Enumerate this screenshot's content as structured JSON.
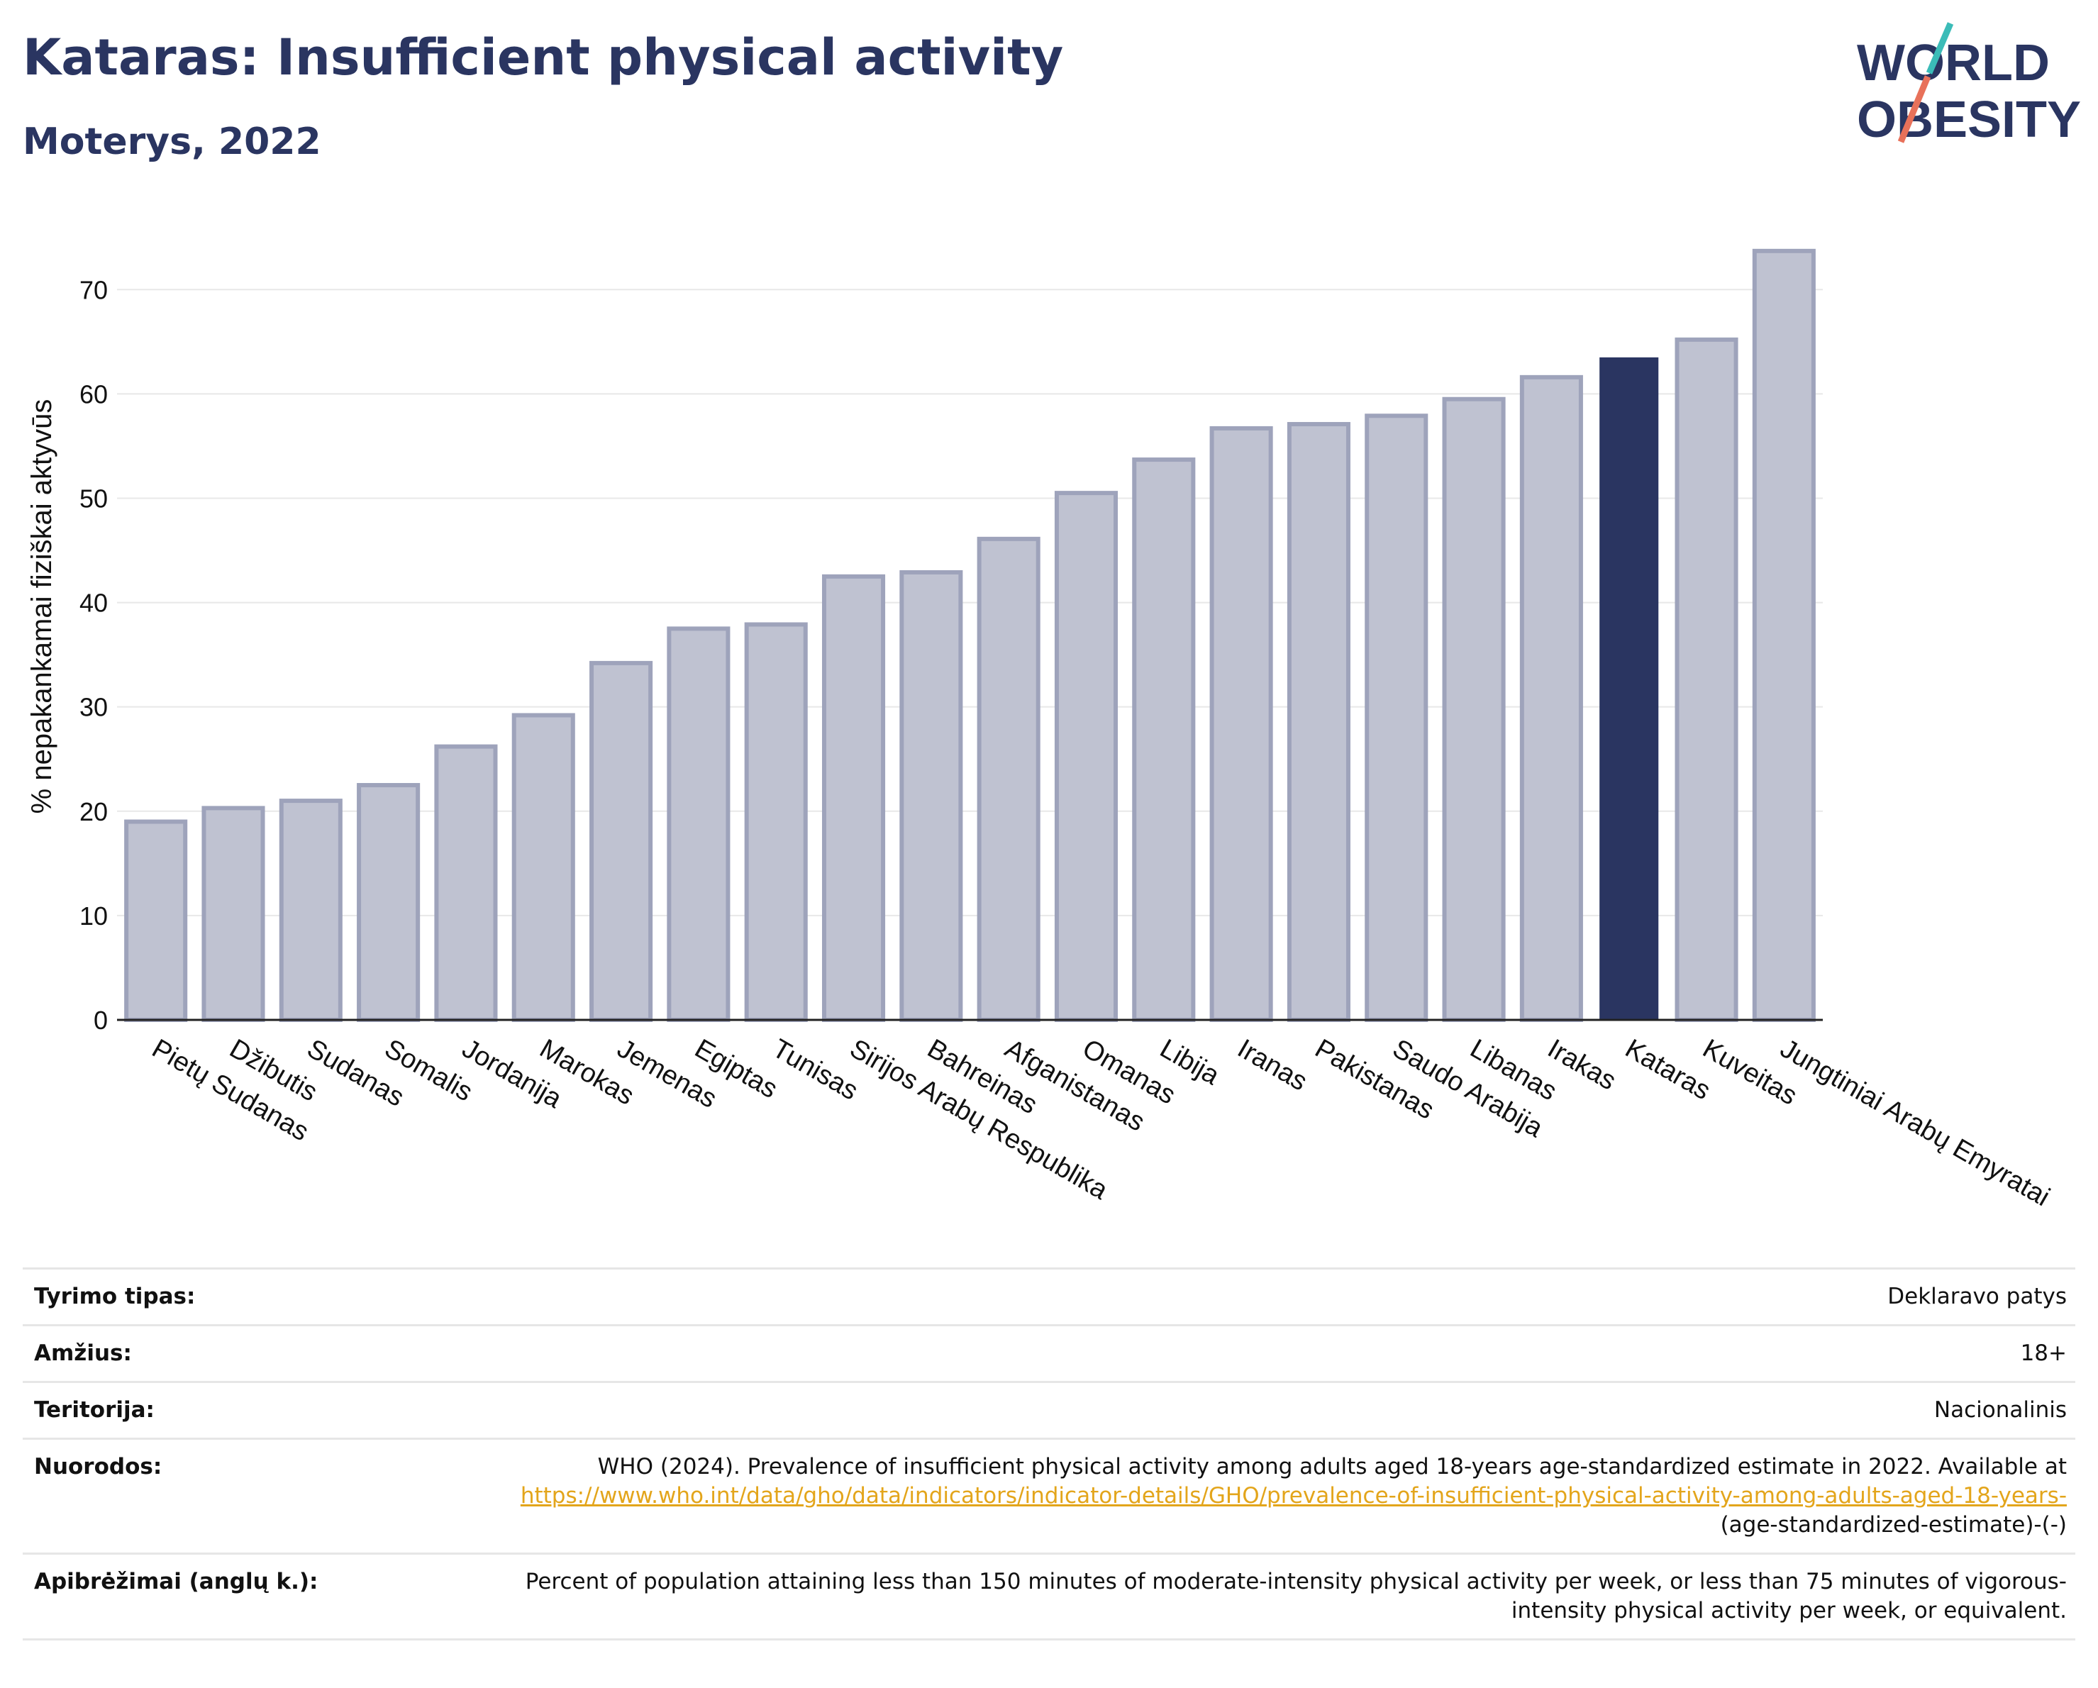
{
  "header": {
    "title": "Kataras: Insufficient physical activity",
    "subtitle": "Moterys, 2022"
  },
  "logo": {
    "line1": "WORLD",
    "line2": "OBESITY"
  },
  "chart_data": {
    "type": "bar",
    "ylabel": "% nepakankamai fiziškai aktyvūs",
    "ylim": [
      0,
      76
    ],
    "yticks": [
      0,
      10,
      20,
      30,
      40,
      50,
      60,
      70
    ],
    "grid": true,
    "highlight": "Kataras",
    "colors": {
      "bar": "#bfc2d1",
      "bar_edge": "#9ea3bb",
      "highlight": "#2a3561"
    },
    "categories": [
      "Pietų Sudanas",
      "Džibutis",
      "Sudanas",
      "Somalis",
      "Jordanija",
      "Marokas",
      "Jemenas",
      "Egiptas",
      "Tunisas",
      "Sirijos Arabų Respublika",
      "Bahreinas",
      "Afganistanas",
      "Omanas",
      "Libija",
      "Iranas",
      "Pakistanas",
      "Saudo Arabija",
      "Libanas",
      "Irakas",
      "Kataras",
      "Kuveitas",
      "Jungtiniai Arabų Emyratai"
    ],
    "values": [
      19.0,
      20.3,
      21.0,
      22.5,
      26.2,
      29.2,
      34.2,
      37.5,
      37.9,
      42.5,
      42.9,
      46.1,
      50.5,
      53.7,
      56.7,
      57.1,
      57.9,
      59.5,
      61.6,
      63.5,
      65.2,
      73.7
    ]
  },
  "info": {
    "survey_label": "Tyrimo tipas:",
    "survey_value": "Deklaravo patys",
    "age_label": "Amžius:",
    "age_value": "18+",
    "territory_label": "Teritorija:",
    "territory_value": "Nacionalinis",
    "refs_label": "Nuorodos:",
    "refs_text": "WHO (2024). Prevalence of insufficient physical activity among adults aged 18-years age-standardized estimate in 2022. Available at",
    "refs_link": "https://www.who.int/data/gho/data/indicators/indicator-details/GHO/prevalence-of-insufficient-physical-activity-among-adults-aged-18-years-",
    "refs_suffix": "(age-standardized-estimate)-(-)",
    "def_label": "Apibrėžimai (anglų k.):",
    "def_value": "Percent of population attaining less than 150 minutes of moderate-intensity physical activity per week, or less than 75 minutes of vigorous-intensity physical activity per week, or equivalent."
  }
}
